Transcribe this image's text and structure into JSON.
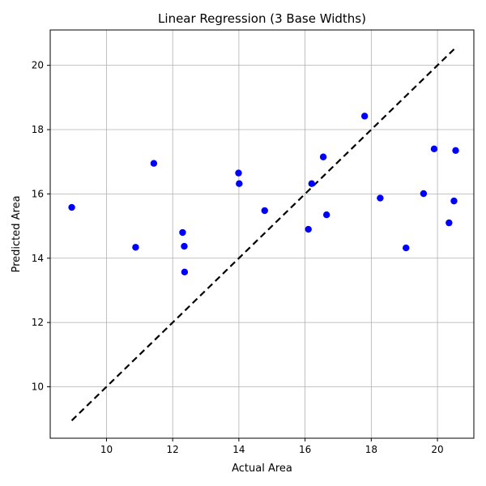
{
  "chart_data": {
    "type": "scatter",
    "title": "Linear Regression (3 Base Widths)",
    "xlabel": "Actual Area",
    "ylabel": "Predicted Area",
    "xlim": [
      8.3,
      21.1
    ],
    "ylim": [
      8.4,
      21.1
    ],
    "xticks": [
      10,
      12,
      14,
      16,
      18,
      20
    ],
    "yticks": [
      10,
      12,
      14,
      16,
      18,
      20
    ],
    "grid": true,
    "colors": {
      "points": "#0000ff",
      "reference_line": "#000000",
      "grid": "#b0b0b0"
    },
    "series": [
      {
        "kind": "points",
        "x": [
          8.95,
          10.88,
          11.43,
          12.3,
          12.35,
          12.36,
          13.99,
          14.01,
          14.78,
          16.1,
          16.2,
          16.55,
          16.65,
          17.8,
          18.27,
          19.05,
          19.58,
          19.9,
          20.35,
          20.5,
          20.55
        ],
        "y": [
          15.58,
          14.34,
          16.95,
          14.8,
          14.37,
          13.57,
          16.65,
          16.32,
          15.48,
          14.9,
          16.32,
          17.15,
          15.35,
          18.42,
          15.87,
          14.32,
          16.01,
          17.4,
          15.1,
          15.78,
          17.35
        ]
      },
      {
        "kind": "line",
        "style": "dashed",
        "x": [
          8.95,
          20.55
        ],
        "y": [
          8.95,
          20.55
        ]
      }
    ]
  }
}
